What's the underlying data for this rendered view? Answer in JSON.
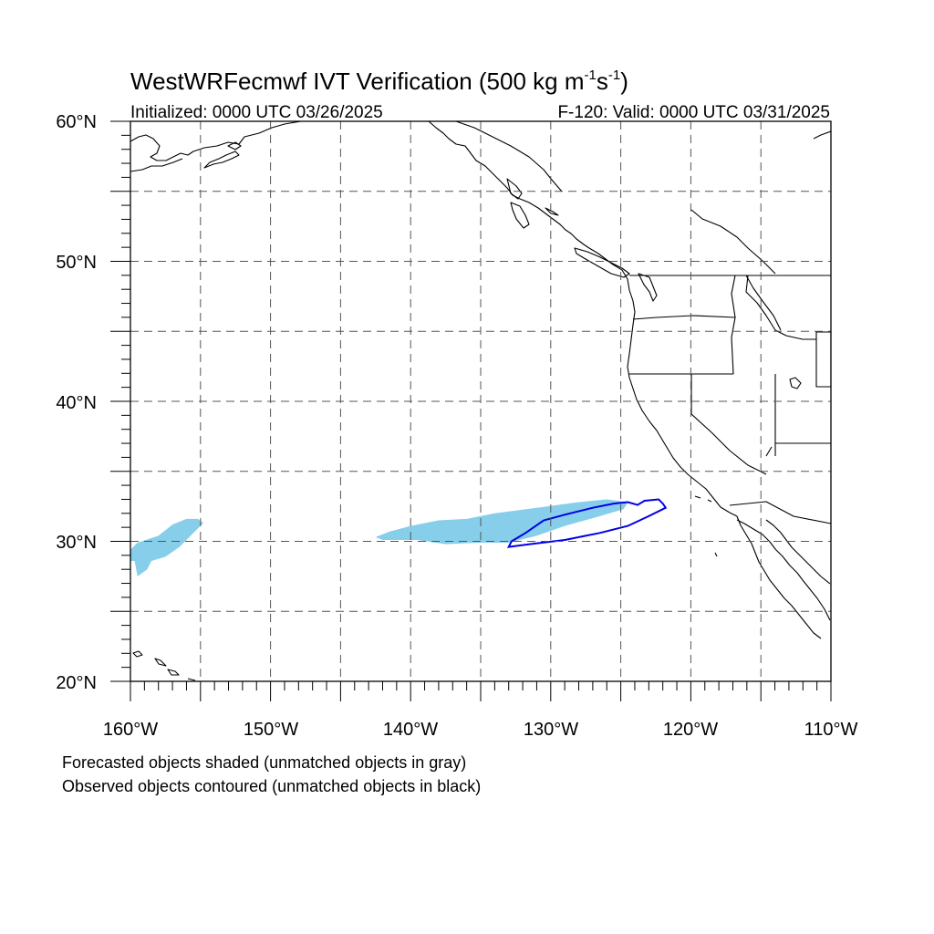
{
  "title": {
    "main": "WestWRFecmwf IVT Verification (500 kg m",
    "unit_exp1": "-1",
    "unit_s": "s",
    "unit_exp2": "-1",
    "close": ")"
  },
  "subtitle": {
    "left": "Initialized: 0000 UTC 03/26/2025",
    "right": "F-120: Valid: 0000 UTC 03/31/2025"
  },
  "axes": {
    "lon_labels": [
      "160°W",
      "150°W",
      "140°W",
      "130°W",
      "120°W",
      "110°W"
    ],
    "lat_labels": [
      "60°N",
      "50°N",
      "40°N",
      "30°N",
      "20°N"
    ]
  },
  "legend": {
    "line1": "Forecasted objects shaded (unmatched objects in gray)",
    "line2": "Observed objects contoured (unmatched objects in black)"
  },
  "colors": {
    "forecast_fill": "#87ceeb",
    "observed_contour": "#0000e6",
    "coastline": "#000000",
    "grid": "#555555"
  },
  "map_data": {
    "projection": "cylindrical equidistant",
    "lon_range": [
      -160,
      -110
    ],
    "lat_range": [
      20,
      60
    ],
    "grid_spacing_deg": 5,
    "forecast_objects": [
      {
        "name": "forecast-object-central",
        "lonlat": [
          [
            -142.5,
            30.3
          ],
          [
            -141.5,
            30.7
          ],
          [
            -140,
            31.1
          ],
          [
            -138,
            31.5
          ],
          [
            -136,
            31.6
          ],
          [
            -134,
            32.0
          ],
          [
            -131,
            32.4
          ],
          [
            -128,
            32.8
          ],
          [
            -126,
            33.0
          ],
          [
            -124.5,
            32.8
          ],
          [
            -124.8,
            32.3
          ],
          [
            -126.5,
            31.8
          ],
          [
            -129,
            31.1
          ],
          [
            -131,
            30.4
          ],
          [
            -133,
            29.9
          ],
          [
            -135,
            29.9
          ],
          [
            -137.5,
            29.8
          ],
          [
            -139.5,
            30.1
          ],
          [
            -142,
            30.1
          ]
        ]
      },
      {
        "name": "forecast-object-west",
        "lonlat": [
          [
            -160,
            29.4
          ],
          [
            -159.5,
            29.9
          ],
          [
            -158,
            30.4
          ],
          [
            -157,
            31.2
          ],
          [
            -156,
            31.6
          ],
          [
            -155.2,
            31.6
          ],
          [
            -154.8,
            31.3
          ],
          [
            -155.5,
            30.6
          ],
          [
            -156.5,
            29.6
          ],
          [
            -157.5,
            28.9
          ],
          [
            -158.5,
            28.6
          ],
          [
            -158.8,
            28.0
          ],
          [
            -159.5,
            27.5
          ],
          [
            -159.7,
            28.6
          ],
          [
            -160,
            28.6
          ]
        ]
      }
    ],
    "observed_objects": [
      {
        "name": "observed-contour-1",
        "lonlat": [
          [
            -133,
            29.6
          ],
          [
            -131.5,
            29.8
          ],
          [
            -129,
            30.1
          ],
          [
            -126.5,
            30.6
          ],
          [
            -124.5,
            31.1
          ],
          [
            -123,
            31.8
          ],
          [
            -121.8,
            32.4
          ],
          [
            -122.0,
            32.7
          ],
          [
            -122.3,
            33.0
          ],
          [
            -123.3,
            32.9
          ],
          [
            -123.8,
            32.6
          ],
          [
            -124.5,
            32.8
          ],
          [
            -125.5,
            32.7
          ],
          [
            -127,
            32.4
          ],
          [
            -129,
            31.9
          ],
          [
            -130.5,
            31.5
          ],
          [
            -131.8,
            30.6
          ],
          [
            -132.8,
            30.0
          ],
          [
            -133,
            29.6
          ]
        ]
      }
    ]
  }
}
